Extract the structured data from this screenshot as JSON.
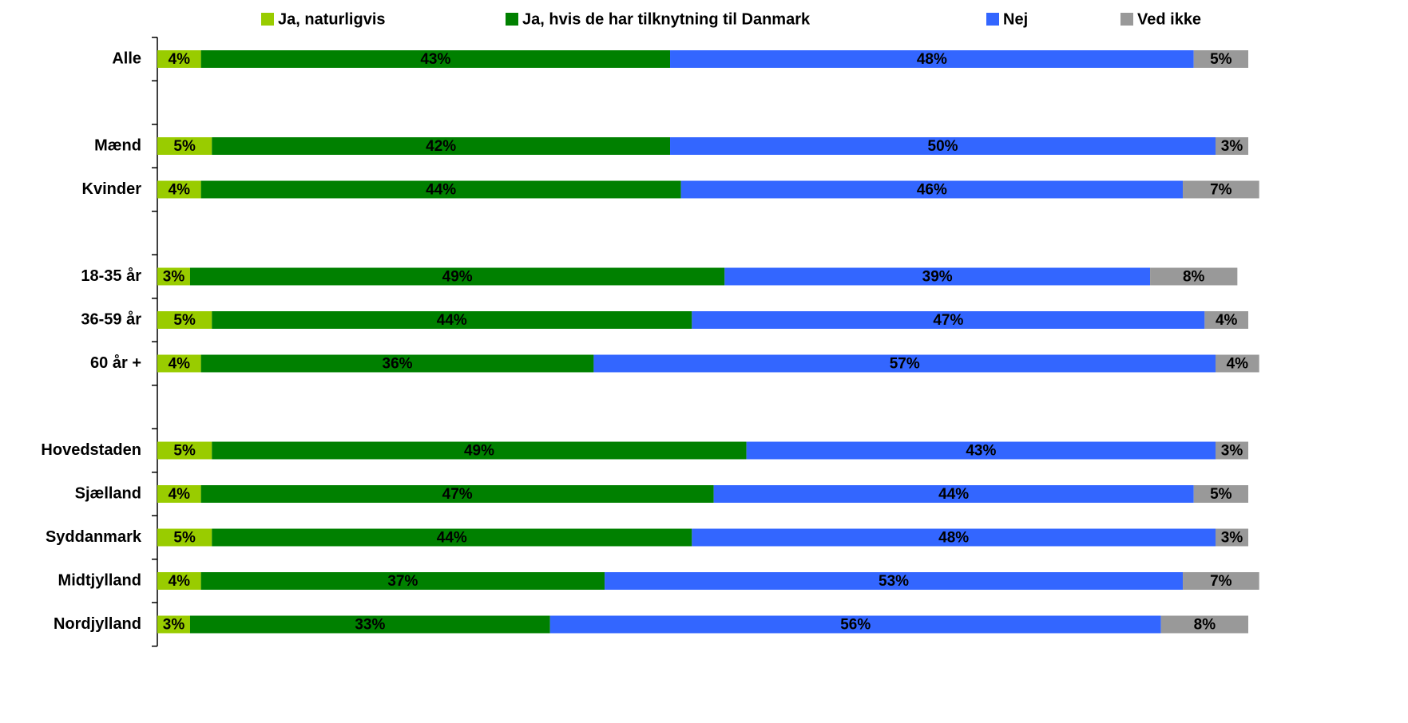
{
  "chart_data": {
    "type": "stacked-barh",
    "categories": [
      "Alle",
      null,
      "Mænd",
      "Kvinder",
      null,
      "18-35 år",
      "36-59 år",
      "60 år +",
      null,
      "Hovedstaden",
      "Sjælland",
      "Syddanmark",
      "Midtjylland",
      "Nordjylland"
    ],
    "series": [
      {
        "name": "Ja, naturligvis",
        "color": "#99cc00",
        "values": [
          4,
          null,
          5,
          4,
          null,
          3,
          5,
          4,
          null,
          5,
          4,
          5,
          4,
          3
        ],
        "value_labels": [
          "4%",
          null,
          "5%",
          "4%",
          null,
          "3%",
          "5%",
          "4%",
          null,
          "5%",
          "4%",
          "5%",
          "4%",
          "3%"
        ]
      },
      {
        "name": "Ja, hvis de har tilknytning til Danmark",
        "color": "#008000",
        "values": [
          43,
          null,
          42,
          44,
          null,
          49,
          44,
          36,
          null,
          49,
          47,
          44,
          37,
          33
        ],
        "value_labels": [
          "43%",
          null,
          "42%",
          "44%",
          null,
          "49%",
          "44%",
          "36%",
          null,
          "49%",
          "47%",
          "44%",
          "37%",
          "33%"
        ]
      },
      {
        "name": "Nej",
        "color": "#3366ff",
        "values": [
          48,
          null,
          50,
          46,
          null,
          39,
          47,
          57,
          null,
          43,
          44,
          48,
          53,
          56
        ],
        "value_labels": [
          "48%",
          null,
          "50%",
          "46%",
          null,
          "39%",
          "47%",
          "57%",
          null,
          "43%",
          "44%",
          "48%",
          "53%",
          "56%"
        ]
      },
      {
        "name": "Ved ikke",
        "color": "#999999",
        "values": [
          5,
          null,
          3,
          7,
          null,
          8,
          4,
          4,
          null,
          3,
          5,
          3,
          7,
          8
        ],
        "value_labels": [
          "5%",
          null,
          "3%",
          "7%",
          null,
          "8%",
          "4%",
          "4%",
          null,
          "3%",
          "5%",
          "3%",
          "7%",
          "8%"
        ]
      }
    ],
    "xlim": [
      0,
      100
    ]
  }
}
